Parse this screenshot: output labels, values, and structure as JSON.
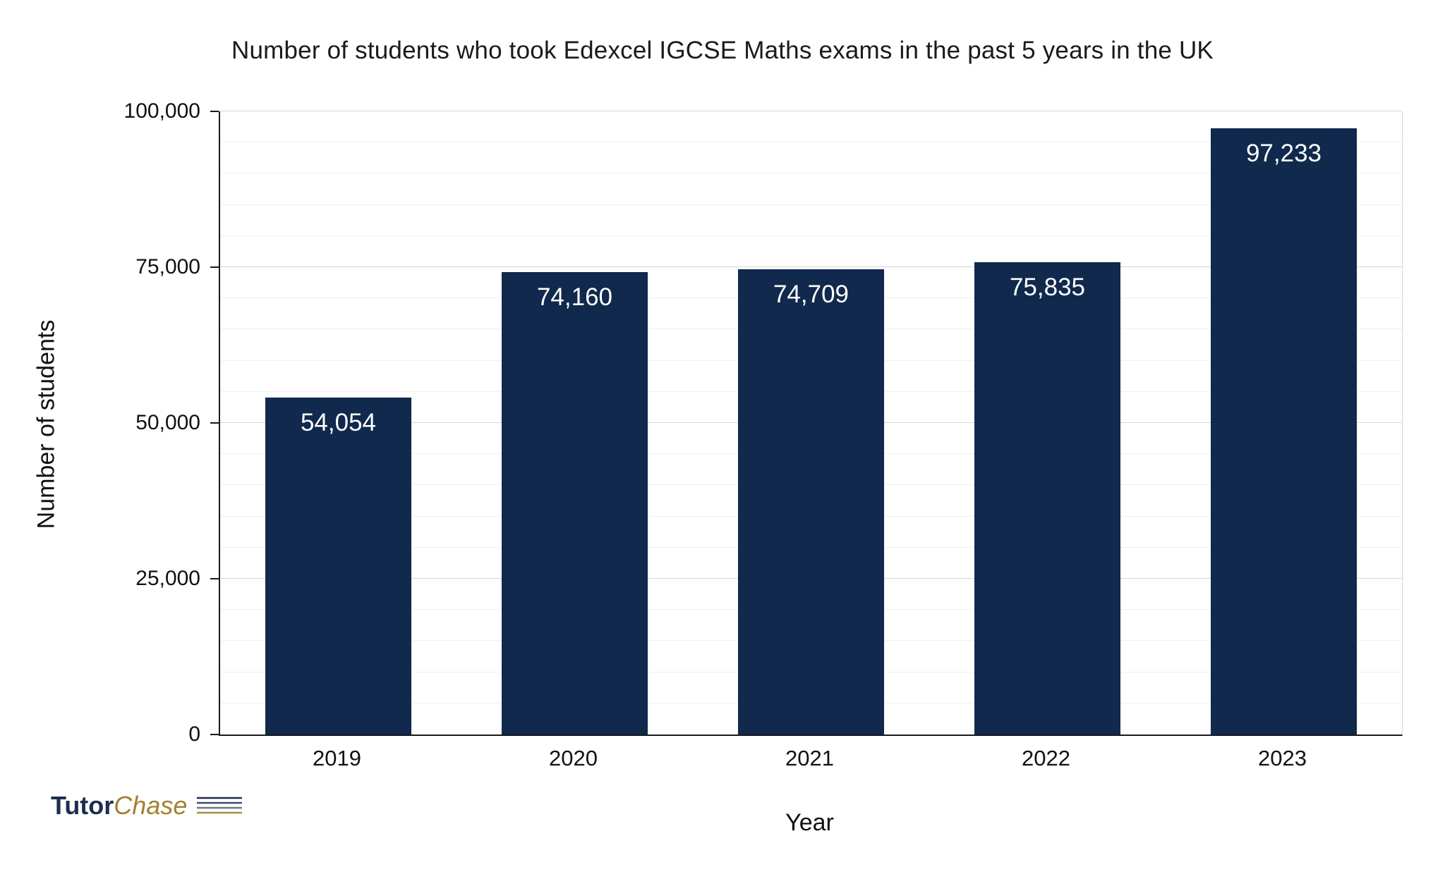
{
  "chart_data": {
    "type": "bar",
    "title": "Number of students who took Edexcel IGCSE Maths exams in the past 5 years in the UK",
    "xlabel": "Year",
    "ylabel": "Number of students",
    "categories": [
      "2019",
      "2020",
      "2021",
      "2022",
      "2023"
    ],
    "values": [
      54054,
      74160,
      74709,
      75835,
      97233
    ],
    "value_labels": [
      "54,054",
      "74,160",
      "74,709",
      "75,835",
      "97,233"
    ],
    "ylim": [
      0,
      100000
    ],
    "ytick_interval": 25000,
    "ytick_labels": [
      "0",
      "25,000",
      "50,000",
      "75,000",
      "100,000"
    ],
    "minor_gridline_interval": 5000,
    "grid": true,
    "legend": "none",
    "bar_color": "#10294C",
    "bar_label_color": "#ffffff"
  },
  "logo": {
    "part1": "Tutor",
    "part2": "Chase"
  },
  "colors": {
    "bar": "#10294C",
    "gold": "#a3812e",
    "navy": "#1e2d50",
    "gridline_major": "#d6d6d6",
    "gridline_minor": "#efefef",
    "axis": "#1a1a1a"
  }
}
